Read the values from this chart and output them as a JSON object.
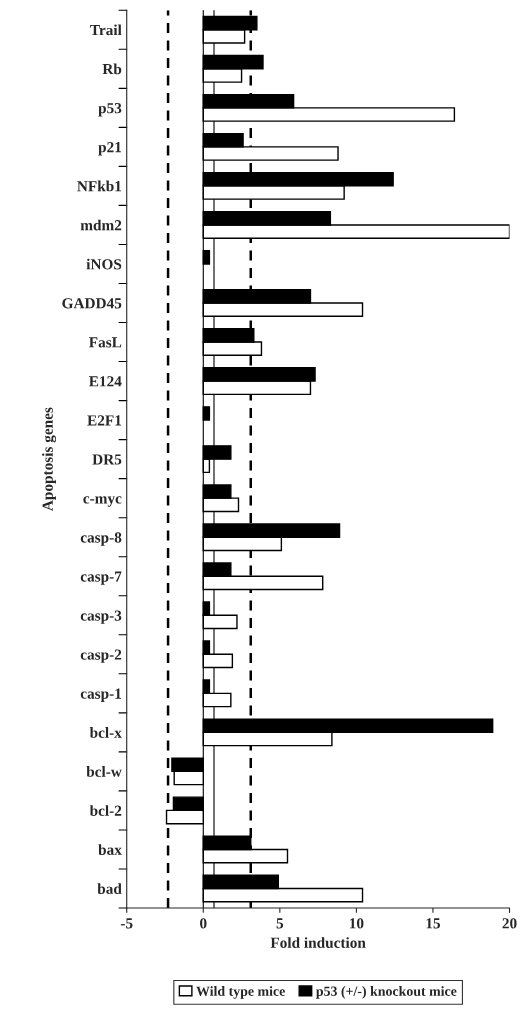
{
  "chart_data": {
    "type": "bar",
    "orientation": "horizontal",
    "xlabel": "Fold induction",
    "ylabel": "Apoptosis genes",
    "categories": [
      "Trail",
      "Rb",
      "p53",
      "p21",
      "NFkb1",
      "mdm2",
      "iNOS",
      "GADD45",
      "FasL",
      "E124",
      "E2F1",
      "DR5",
      "c-myc",
      "casp-8",
      "casp-7",
      "casp-3",
      "casp-2",
      "casp-1",
      "bcl-x",
      "bcl-w",
      "bcl-2",
      "bax",
      "bad"
    ],
    "series": [
      {
        "name": "Wild type mice",
        "color": "#ffffff",
        "values": [
          2.7,
          2.5,
          16.4,
          8.8,
          9.2,
          20,
          null,
          10.4,
          3.8,
          7.0,
          null,
          0.4,
          2.3,
          5.1,
          7.8,
          2.2,
          1.9,
          1.8,
          8.4,
          -1.9,
          -2.4,
          5.5,
          10.4
        ]
      },
      {
        "name": "p53 (+/-) knockout mice",
        "color": "#000000",
        "values": [
          3.5,
          3.9,
          5.9,
          2.6,
          12.4,
          8.3,
          0.4,
          7.0,
          3.3,
          7.3,
          0.4,
          1.8,
          1.8,
          8.9,
          1.8,
          0.4,
          0.4,
          0.4,
          18.9,
          -2.05,
          -1.95,
          3.1,
          4.9
        ]
      }
    ],
    "xlim": [
      -5,
      20
    ],
    "xticks": [
      -5,
      0,
      5,
      10,
      15,
      20
    ],
    "ref_lines": [
      {
        "axis": "x",
        "value": -2.3,
        "line_style": "dashed",
        "color": "#000000"
      },
      {
        "axis": "x",
        "value": 3.1,
        "line_style": "dashed",
        "color": "#000000"
      },
      {
        "axis": "x",
        "value": 0.7,
        "line_style": "solid",
        "color": "#000000"
      },
      {
        "axis": "x",
        "value": 0,
        "line_style": "solid",
        "color": "#000000"
      }
    ],
    "grid": false,
    "legend": "bottom"
  }
}
